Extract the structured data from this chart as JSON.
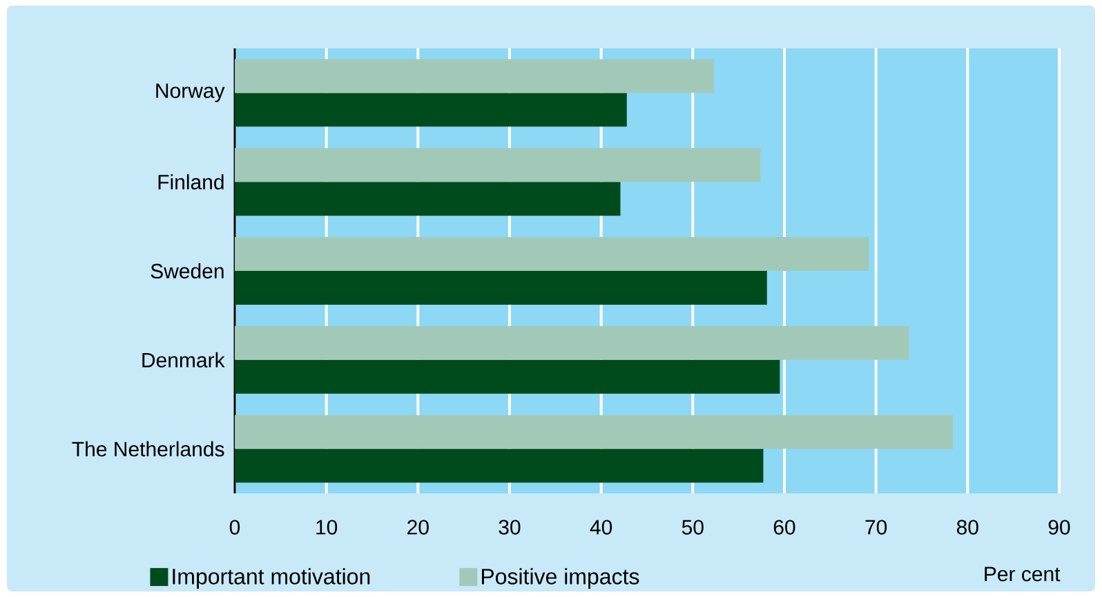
{
  "chart_data": {
    "type": "bar",
    "orientation": "horizontal",
    "categories": [
      "Norway",
      "Finland",
      "Sweden",
      "Denmark",
      "The Netherlands"
    ],
    "series": [
      {
        "name": "Important motivation",
        "color": "#004b1c",
        "values": [
          42.8,
          42.1,
          58.1,
          59.5,
          57.7
        ]
      },
      {
        "name": "Positive impacts",
        "color": "#a2c9b8",
        "values": [
          52.3,
          57.4,
          69.2,
          73.6,
          78.4
        ]
      }
    ],
    "xlabel": "Per cent",
    "xlim": [
      0,
      90
    ],
    "xticks": [
      0,
      10,
      20,
      30,
      40,
      50,
      60,
      70,
      80,
      90
    ],
    "grid": "x",
    "legend": "bottom"
  }
}
